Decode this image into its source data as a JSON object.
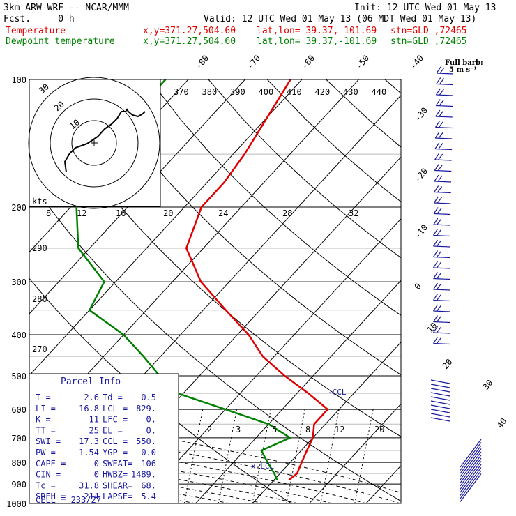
{
  "header": {
    "model": "3km ARW-WRF -- NCAR/MMM",
    "init": "Init: 12 UTC Wed 01 May 13",
    "fcst": "Fcst.     0 h",
    "valid": "Valid: 12 UTC Wed 01 May 13 (06 MDT Wed 01 May 13)",
    "temp_label": "Temperature",
    "dew_label": "Dewpoint temperature",
    "xy": "x,y=371.27,504.60",
    "latlon": "lat,lon= 39.37,-101.69",
    "stn": "stn=GLD ,72465",
    "barb_note1": "Full barb:",
    "barb_note2": "5 m s⁻¹"
  },
  "colors": {
    "temperature": "#e00000",
    "dewpoint": "#008000",
    "barbs": "#1a1aa0",
    "grid": "#000000",
    "dashed": "#000000"
  },
  "chart_data": {
    "type": "line",
    "diagram": "skew-t log-p",
    "y_axis": {
      "scale": "log",
      "pressure_ticks": [
        100,
        200,
        300,
        400,
        500,
        600,
        700,
        800,
        900,
        1000
      ],
      "range": [
        100,
        1000
      ]
    },
    "isotherm_labels": [
      -80,
      -70,
      -60,
      -50,
      -40,
      -30,
      -20,
      -10,
      0,
      10,
      20,
      30,
      40
    ],
    "theta_labels": [
      370,
      380,
      390,
      400,
      410,
      420,
      430,
      440
    ],
    "theta_e_labels": [
      290,
      280,
      270
    ],
    "mixing_ratio_labels_upper": [
      8,
      12,
      16,
      20,
      24,
      28,
      32
    ],
    "mixing_ratio_labels_lower": [
      2,
      3,
      5,
      8,
      12,
      20
    ],
    "hodograph": {
      "units": "kts",
      "rings": [
        10,
        20,
        30
      ]
    },
    "series": [
      {
        "name": "Temperature",
        "color": "#e00000",
        "points": [
          [
            100,
            -62
          ],
          [
            150,
            -58
          ],
          [
            175,
            -57
          ],
          [
            200,
            -57
          ],
          [
            250,
            -53
          ],
          [
            300,
            -45
          ],
          [
            350,
            -36
          ],
          [
            400,
            -28
          ],
          [
            450,
            -22
          ],
          [
            500,
            -15
          ],
          [
            550,
            -8
          ],
          [
            600,
            -2
          ],
          [
            650,
            -2
          ],
          [
            700,
            0
          ],
          [
            750,
            1
          ],
          [
            800,
            2
          ],
          [
            850,
            3
          ],
          [
            880,
            2.6
          ]
        ]
      },
      {
        "name": "Dewpoint temperature",
        "color": "#008000",
        "points": [
          [
            100,
            -84
          ],
          [
            150,
            -84
          ],
          [
            175,
            -83
          ],
          [
            200,
            -79
          ],
          [
            250,
            -72
          ],
          [
            300,
            -62
          ],
          [
            350,
            -60
          ],
          [
            400,
            -50
          ],
          [
            450,
            -43
          ],
          [
            500,
            -37
          ],
          [
            550,
            -31
          ],
          [
            600,
            -20
          ],
          [
            650,
            -10
          ],
          [
            700,
            -4
          ],
          [
            750,
            -7
          ],
          [
            800,
            -4
          ],
          [
            850,
            -1
          ],
          [
            880,
            0.5
          ]
        ]
      }
    ],
    "annotations": [
      "CCL",
      "LCL"
    ]
  },
  "parcel": {
    "title": "Parcel Info",
    "rows": [
      {
        "l1": "T   =",
        "v1": "2.6",
        "l2": "Td  =",
        "v2": "0.5"
      },
      {
        "l1": "LI  =",
        "v1": "16.8",
        "l2": "LCL =",
        "v2": "829."
      },
      {
        "l1": "K   =",
        "v1": "11",
        "l2": "LFC =",
        "v2": "0."
      },
      {
        "l1": "TT  =",
        "v1": "25",
        "l2": "EL  =",
        "v2": "0."
      },
      {
        "l1": "SWI =",
        "v1": "17.3",
        "l2": "CCL =",
        "v2": "550."
      },
      {
        "l1": "PW  =",
        "v1": "1.54",
        "l2": "YGP =",
        "v2": "0.0"
      },
      {
        "l1": "CAPE =",
        "v1": "0",
        "l2": "SWEAT=",
        "v2": "106"
      },
      {
        "l1": "CIN  =",
        "v1": "0",
        "l2": "HWBZ=",
        "v2": "1489."
      },
      {
        "l1": "Tc   =",
        "v1": "31.8",
        "l2": "SHEAR=",
        "v2": "68."
      },
      {
        "l1": "SREH =",
        "v1": "214",
        "l2": "LAPSE=",
        "v2": "5.4"
      }
    ],
    "cell": "CELL = 233/27"
  }
}
